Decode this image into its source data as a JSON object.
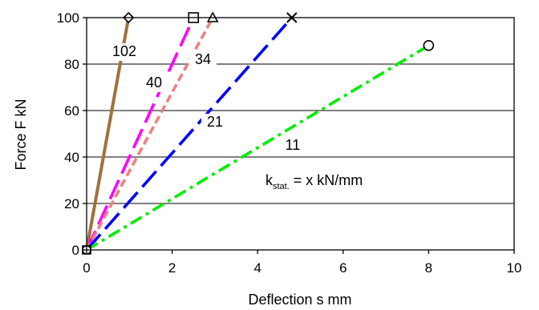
{
  "chart_data": {
    "type": "line",
    "title": "",
    "xlabel": "Deflection s mm",
    "ylabel": "Force F kN",
    "xlim": [
      0,
      10
    ],
    "ylim": [
      0,
      100
    ],
    "xticks": [
      "0",
      "2",
      "4",
      "6",
      "8",
      "10"
    ],
    "yticks": [
      "0",
      "20",
      "40",
      "60",
      "80",
      "100"
    ],
    "grid": "horizontal",
    "series": [
      {
        "name": "102",
        "color": "#a0703c",
        "dash": "solid",
        "marker": "diamond",
        "points": [
          [
            0,
            0
          ],
          [
            0.98,
            100
          ]
        ]
      },
      {
        "name": "40",
        "color": "#ff00ff",
        "dash": "long-dash",
        "marker": "square",
        "points": [
          [
            0,
            0
          ],
          [
            2.5,
            100
          ]
        ]
      },
      {
        "name": "34",
        "color": "#f08080",
        "dash": "short-dash",
        "marker": "triangle",
        "points": [
          [
            0,
            0
          ],
          [
            2.95,
            100
          ]
        ]
      },
      {
        "name": "21",
        "color": "#0000ff",
        "dash": "long-dash",
        "marker": "x",
        "points": [
          [
            0,
            0
          ],
          [
            4.8,
            100
          ]
        ]
      },
      {
        "name": "11",
        "color": "#00ee00",
        "dash": "dash-dot",
        "marker": "circle",
        "points": [
          [
            0,
            0
          ],
          [
            8.0,
            88
          ]
        ]
      }
    ],
    "annotation": {
      "main": "k",
      "sub": "stat.",
      "rest": " = x kN/mm"
    }
  }
}
